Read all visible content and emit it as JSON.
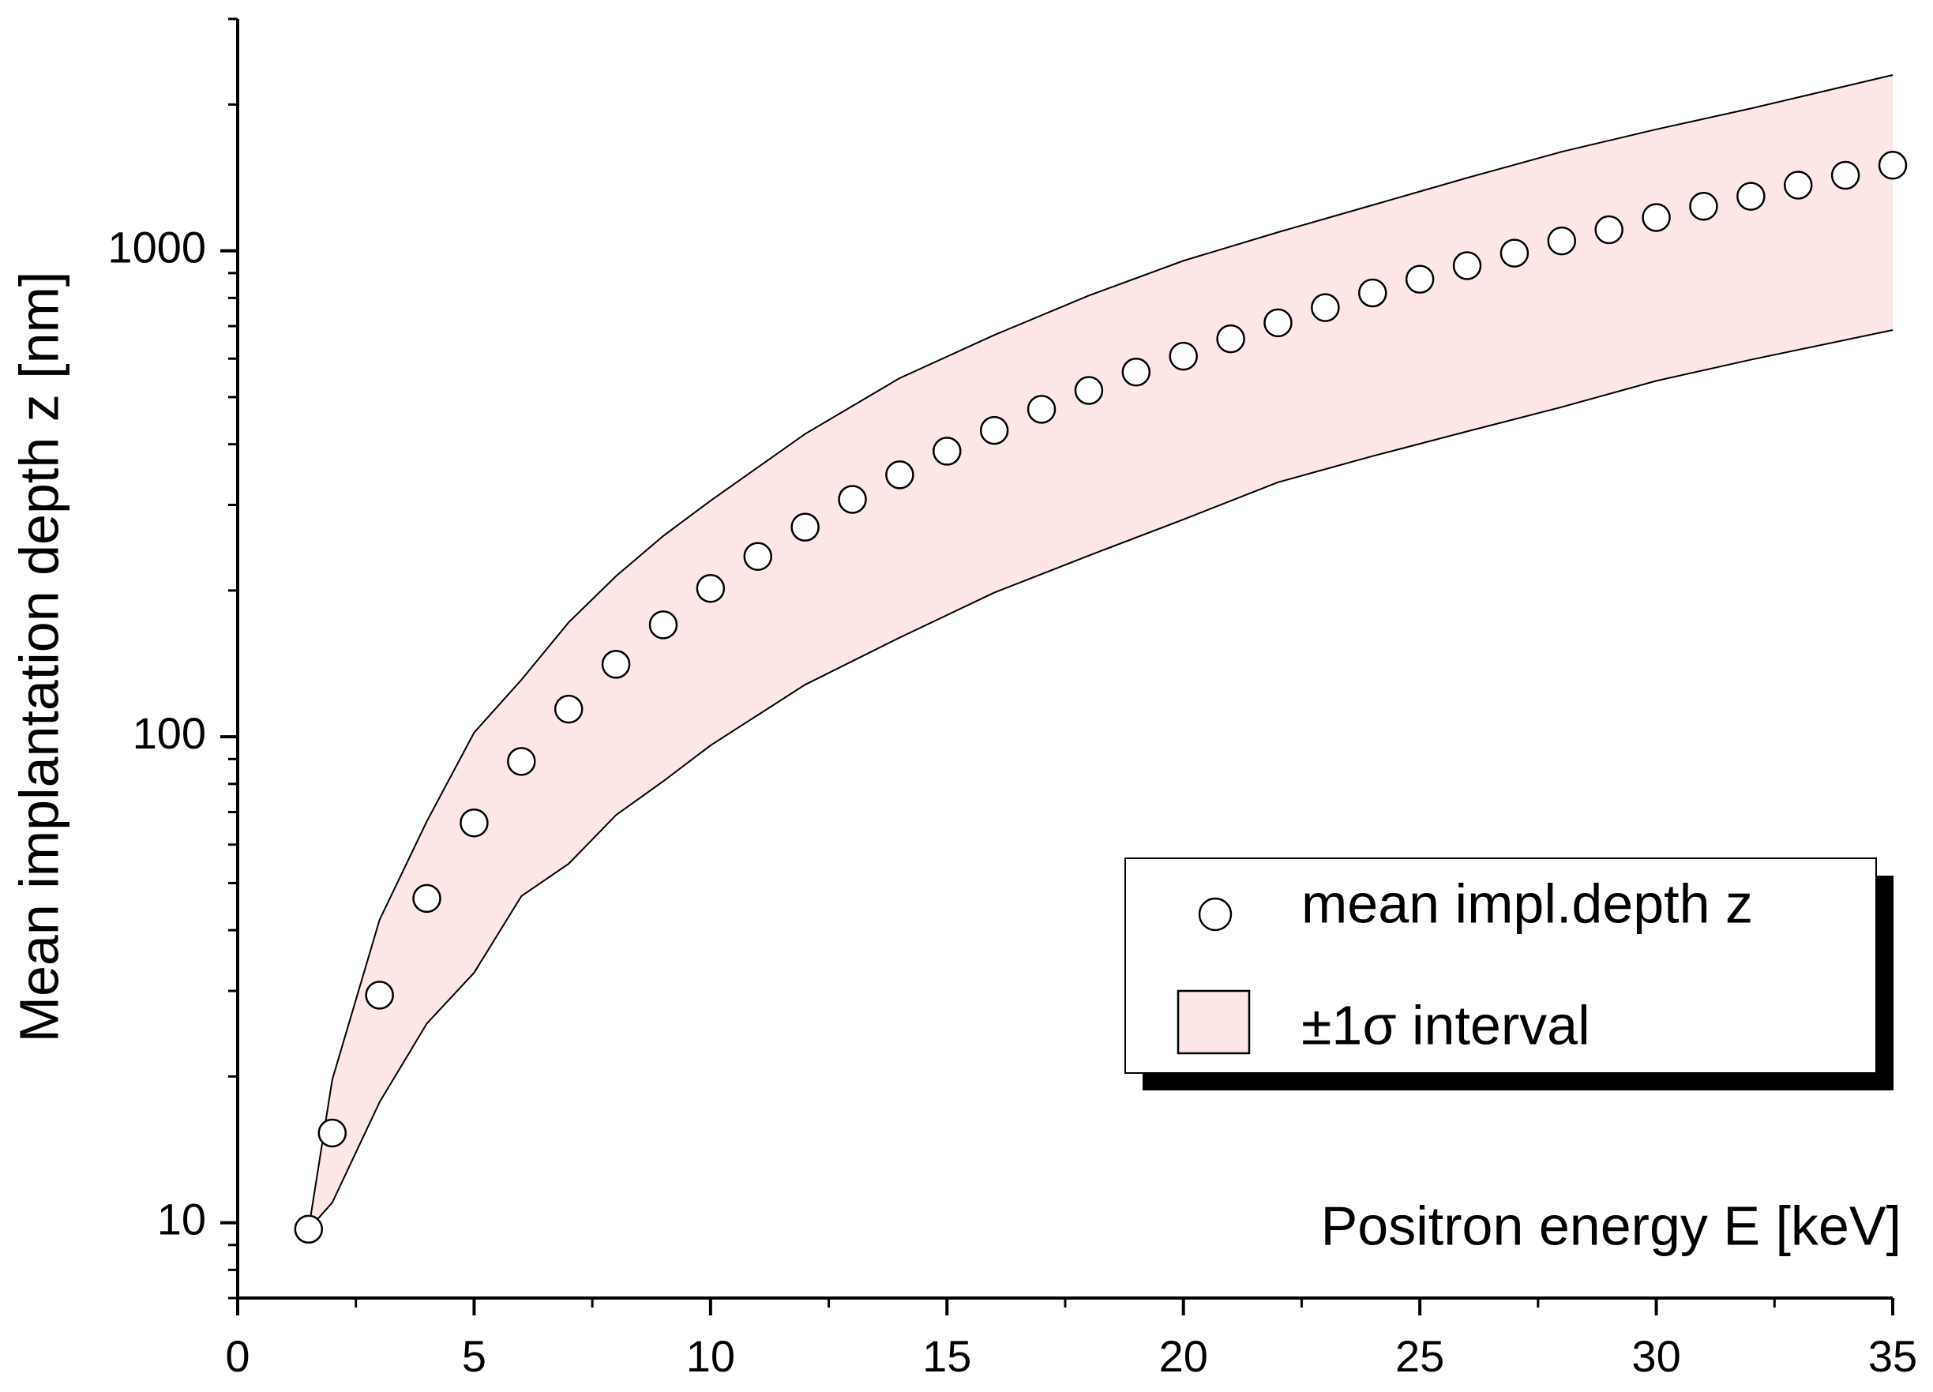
{
  "chart_data": {
    "type": "scatter",
    "x_label": "Positron energy E [keV]",
    "y_label": "Mean implantation depth z [nm]",
    "y_scale": "log",
    "xlim": [
      0,
      35
    ],
    "ylim": [
      7,
      3000
    ],
    "xticks": [
      0,
      5,
      10,
      15,
      20,
      25,
      30,
      35
    ],
    "yticks": [
      10,
      100,
      1000
    ],
    "legend": "lower right",
    "x": [
      1.5,
      2,
      3,
      4,
      5,
      6,
      7,
      8,
      9,
      10,
      11,
      12,
      13,
      14,
      15,
      16,
      17,
      18,
      19,
      20,
      21,
      22,
      23,
      24,
      25,
      26,
      27,
      28,
      29,
      30,
      31,
      32,
      33,
      34,
      35
    ],
    "series": [
      {
        "name": "mean impl.depth z",
        "color": "#ffffff",
        "values": [
          9.7,
          15.3,
          29.4,
          46.5,
          66.5,
          89,
          114,
          141,
          170,
          202,
          235,
          270,
          308,
          346,
          387,
          427,
          472,
          516,
          563,
          607,
          659,
          711,
          764,
          819,
          874,
          932,
          989,
          1048,
          1105,
          1171,
          1235,
          1295,
          1365,
          1430,
          1500
        ]
      }
    ],
    "band": {
      "name": "±1σ interval",
      "color": "#fde6e6",
      "x": [
        1.5,
        2,
        3,
        4,
        5,
        6,
        7,
        8,
        9,
        10,
        12,
        14,
        16,
        18,
        20,
        22,
        24,
        26,
        28,
        30,
        32,
        35
      ],
      "upper": [
        9.7,
        19.7,
        42,
        67,
        102,
        131,
        172,
        214,
        259,
        306,
        420,
        547,
        671,
        809,
        954,
        1092,
        1242,
        1413,
        1599,
        1778,
        1963,
        2300
      ],
      "lower": [
        9.7,
        11,
        17.7,
        25.7,
        32.7,
        47,
        54.8,
        69,
        81,
        96,
        128,
        160,
        198,
        236,
        280,
        334,
        378,
        425,
        477,
        540,
        597,
        687
      ]
    }
  }
}
